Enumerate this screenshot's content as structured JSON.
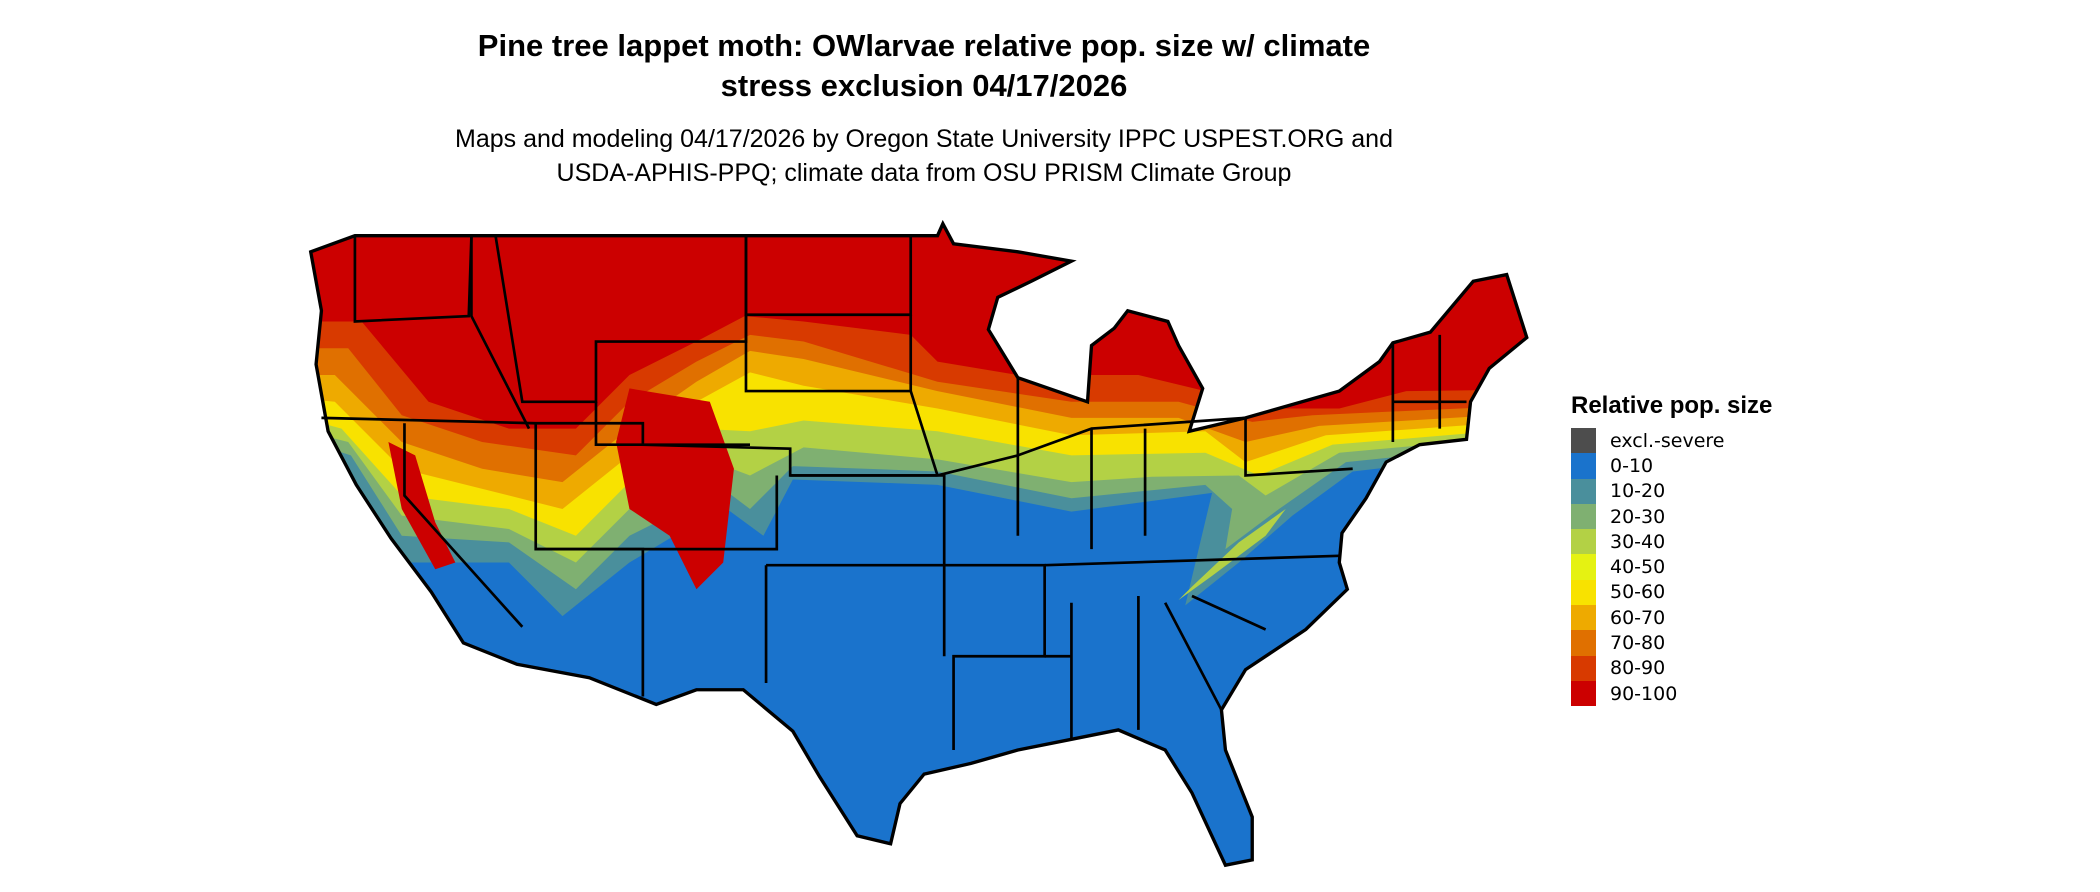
{
  "title_line1": "Pine tree lappet moth: OWlarvae relative pop. size w/ climate",
  "title_line2": "stress exclusion 04/17/2026",
  "subtitle_line1": "Maps and modeling 04/17/2026 by Oregon State University IPPC USPEST.ORG and",
  "subtitle_line2": "USDA-APHIS-PPQ; climate data from OSU PRISM Climate Group",
  "legend": {
    "title": "Relative pop. size",
    "items": [
      {
        "label": "excl.-severe",
        "color": "#4d4d4d"
      },
      {
        "label": "0-10",
        "color": "#1a73cc"
      },
      {
        "label": "10-20",
        "color": "#4a8f9c"
      },
      {
        "label": "20-30",
        "color": "#7fb071"
      },
      {
        "label": "30-40",
        "color": "#b3d145"
      },
      {
        "label": "40-50",
        "color": "#e5f212"
      },
      {
        "label": "50-60",
        "color": "#f8e200"
      },
      {
        "label": "60-70",
        "color": "#eeaa00"
      },
      {
        "label": "70-80",
        "color": "#e07000"
      },
      {
        "label": "80-90",
        "color": "#d83a00"
      },
      {
        "label": "90-100",
        "color": "#cc0000"
      }
    ]
  },
  "map": {
    "region": "Contiguous United States",
    "border_color": "#000000"
  }
}
